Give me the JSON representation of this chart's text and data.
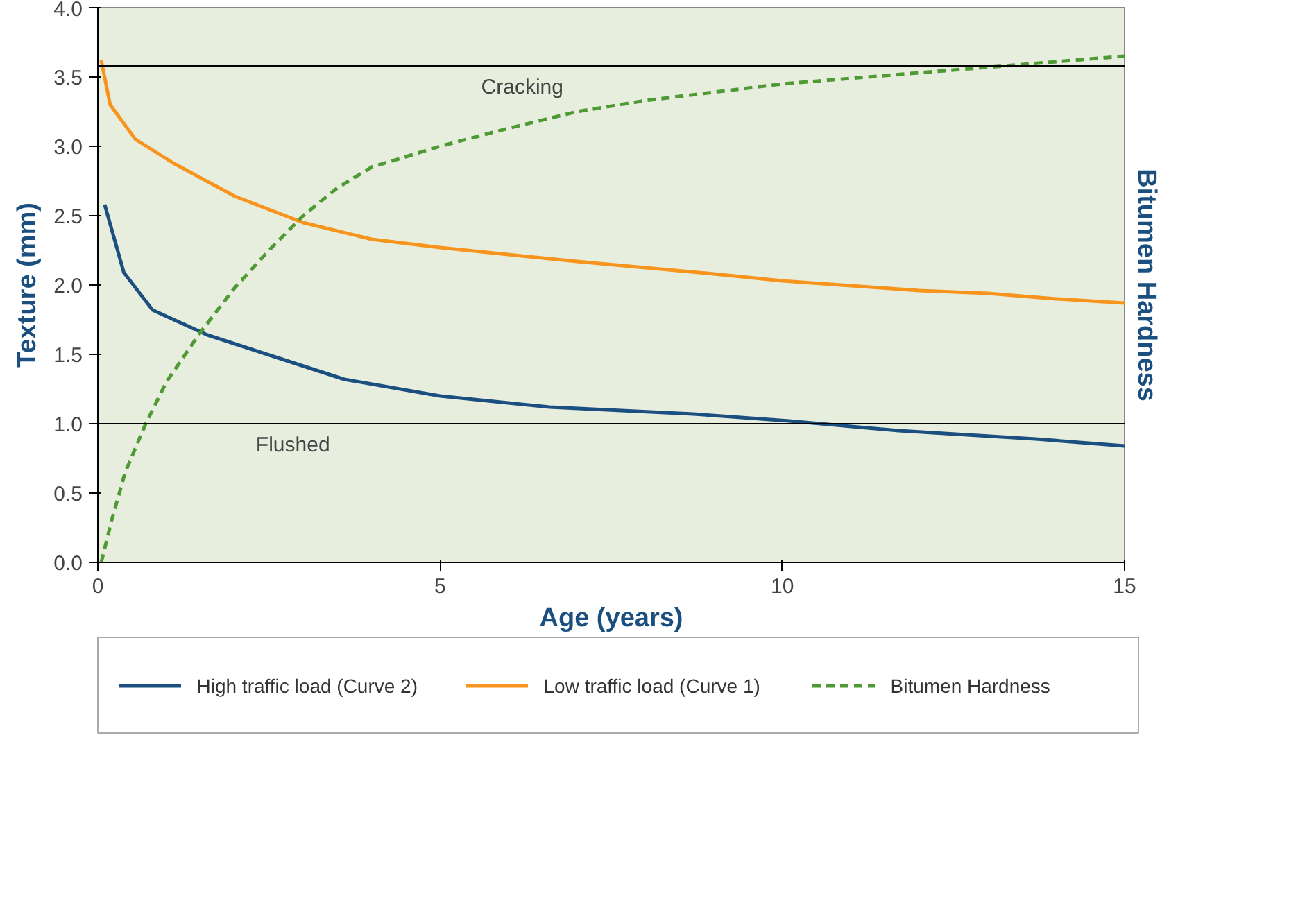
{
  "chart_data": {
    "type": "line",
    "xlabel": "Age (years)",
    "ylabel": "Texture (mm)",
    "y2label": "Bitumen Hardness",
    "xlim": [
      0,
      15
    ],
    "xticks": [
      0,
      5,
      10,
      15
    ],
    "ylim": [
      0,
      4
    ],
    "yticks": [
      {
        "value": 0,
        "label": "0.0"
      },
      {
        "value": 0.5,
        "label": "0.5"
      },
      {
        "value": 1,
        "label": "1.0"
      },
      {
        "value": 1.5,
        "label": "1.5"
      },
      {
        "value": 2,
        "label": "2.0"
      },
      {
        "value": 2.5,
        "label": "2.5"
      },
      {
        "value": 3,
        "label": "3.0"
      },
      {
        "value": 3.5,
        "label": "3.5"
      },
      {
        "value": 4,
        "label": "4.0"
      }
    ],
    "grid": false,
    "legend": "bottom",
    "marker": "none",
    "ref_lines": [
      {
        "axis": "y",
        "value": 3.58,
        "label": "Cracking",
        "color": "#000000"
      },
      {
        "axis": "y",
        "value": 1.0,
        "label": "Flushed",
        "color": "#000000"
      }
    ],
    "series": [
      {
        "name": "High traffic load (Curve 2)",
        "color": "#1b4f80",
        "line_style": "solid",
        "x": [
          0.1,
          0.38,
          0.8,
          1.6,
          2.6,
          3.6,
          5,
          6.6,
          8.7,
          10.1,
          11.7,
          13.7,
          15
        ],
        "values": [
          2.58,
          2.09,
          1.82,
          1.64,
          1.48,
          1.32,
          1.2,
          1.12,
          1.07,
          1.02,
          0.95,
          0.89,
          0.84
        ]
      },
      {
        "name": "Low traffic load (Curve 1)",
        "color": "#f7941d",
        "line_style": "solid",
        "x": [
          0.05,
          0.18,
          0.55,
          1.1,
          2.0,
          3.0,
          4,
          5,
          7,
          9,
          10,
          12,
          13,
          14,
          15
        ],
        "values": [
          3.62,
          3.3,
          3.05,
          2.88,
          2.64,
          2.45,
          2.33,
          2.27,
          2.17,
          2.08,
          2.03,
          1.96,
          1.94,
          1.9,
          1.87
        ]
      },
      {
        "name": "Bitumen Hardness",
        "color": "#4e9a35",
        "line_style": "dashed",
        "x": [
          0.05,
          0.2,
          0.4,
          0.7,
          1,
          1.5,
          2,
          2.5,
          3,
          3.5,
          4,
          5,
          6,
          7,
          8,
          10,
          12,
          13,
          15
        ],
        "values": [
          0.0,
          0.3,
          0.65,
          1.0,
          1.3,
          1.66,
          1.98,
          2.25,
          2.5,
          2.7,
          2.85,
          3.0,
          3.13,
          3.25,
          3.33,
          3.45,
          3.53,
          3.57,
          3.65
        ]
      }
    ]
  }
}
